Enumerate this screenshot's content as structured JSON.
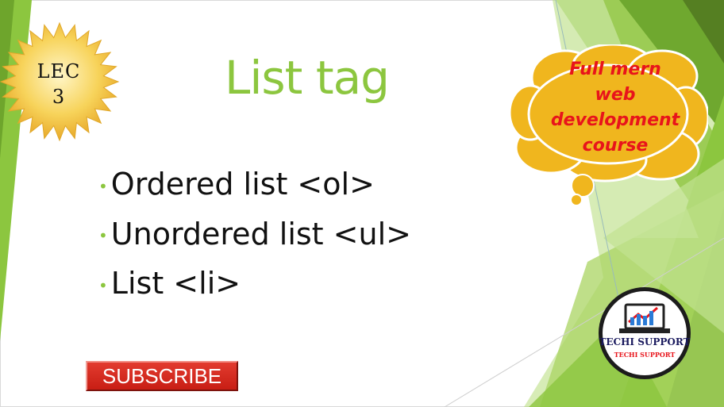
{
  "badge": {
    "line1": "LEC",
    "line2": "3"
  },
  "title": "List tag",
  "bullets": [
    "Ordered list <ol>",
    "Unordered list <ul>",
    "List <li>"
  ],
  "cloud": {
    "lines": [
      "Full mern",
      "web",
      "development",
      "course"
    ]
  },
  "logo": {
    "line1": "TECHI SUPPORT",
    "line2": "TECHI SUPPORT"
  },
  "subscribe_label": "SUBSCRIBE",
  "colors": {
    "accent_green": "#8cc63f",
    "cloud_yellow": "#f0b61e",
    "cloud_text_red": "#e8141b",
    "subscribe_red": "#d4281d"
  }
}
